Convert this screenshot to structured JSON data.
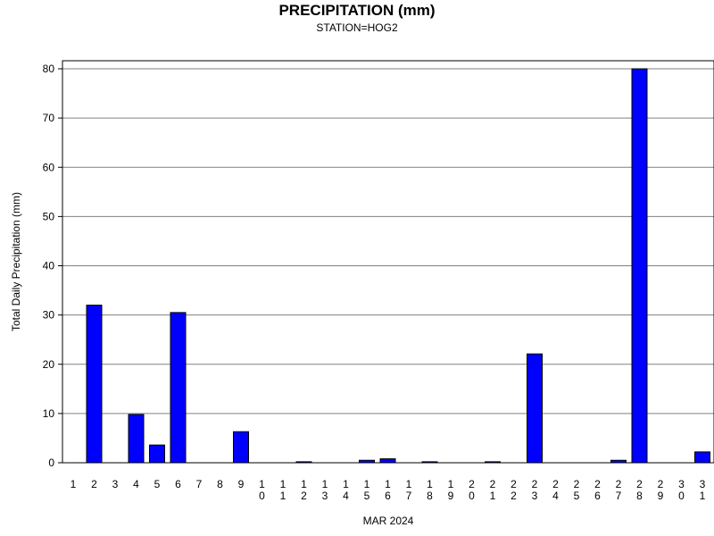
{
  "chart_data": {
    "type": "bar",
    "title": "PRECIPITATION (mm)",
    "subtitle": "STATION=HOG2",
    "xlabel": "MAR 2024",
    "ylabel": "Total Daily Precipitation (mm)",
    "ylim": [
      0,
      80
    ],
    "yticks": [
      0,
      10,
      20,
      30,
      40,
      50,
      60,
      70,
      80
    ],
    "grid": true,
    "bar_color": "#0000ff",
    "categories": [
      "1",
      "2",
      "3",
      "4",
      "5",
      "6",
      "7",
      "8",
      "9",
      "10",
      "11",
      "12",
      "13",
      "14",
      "15",
      "16",
      "17",
      "18",
      "19",
      "20",
      "21",
      "22",
      "23",
      "24",
      "25",
      "26",
      "27",
      "28",
      "29",
      "30",
      "31"
    ],
    "values": [
      0,
      32,
      0,
      9.8,
      3.6,
      30.5,
      0,
      0,
      6.3,
      0,
      0,
      0.2,
      0,
      0,
      0.5,
      0.8,
      0,
      0.2,
      0,
      0,
      0.2,
      0,
      22.1,
      0,
      0,
      0,
      0.5,
      80,
      0,
      0,
      2.2
    ]
  }
}
